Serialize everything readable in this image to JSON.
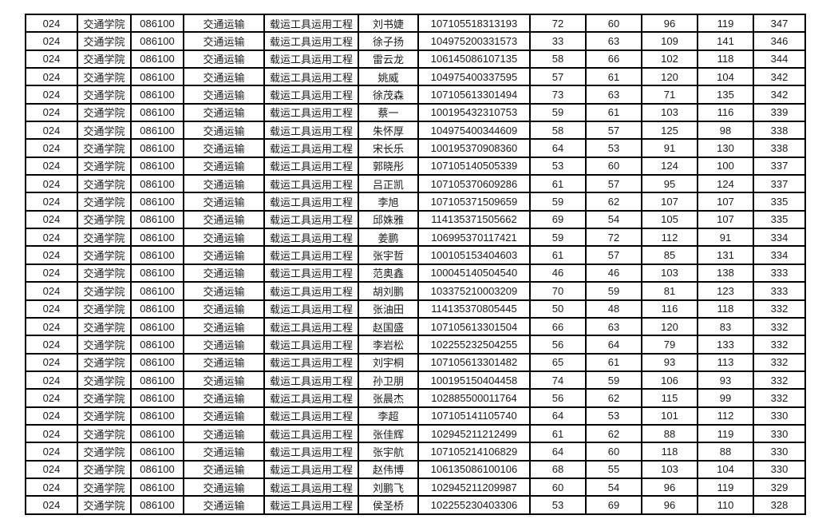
{
  "table": {
    "repeated": {
      "dept_code": "024",
      "college": "交通学院",
      "major_code": "086100",
      "major": "交通运输",
      "direction": "载运工具运用工程"
    },
    "rows": [
      [
        "024",
        "交通学院",
        "086100",
        "交通运输",
        "载运工具运用工程",
        "刘书婕",
        "107105518313193",
        "72",
        "60",
        "96",
        "119",
        "347"
      ],
      [
        "024",
        "交通学院",
        "086100",
        "交通运输",
        "载运工具运用工程",
        "徐子扬",
        "104975200331573",
        "33",
        "63",
        "109",
        "141",
        "346"
      ],
      [
        "024",
        "交通学院",
        "086100",
        "交通运输",
        "载运工具运用工程",
        "雷云龙",
        "106145086107135",
        "58",
        "66",
        "102",
        "118",
        "344"
      ],
      [
        "024",
        "交通学院",
        "086100",
        "交通运输",
        "载运工具运用工程",
        "姚威",
        "104975400337595",
        "57",
        "61",
        "120",
        "104",
        "342"
      ],
      [
        "024",
        "交通学院",
        "086100",
        "交通运输",
        "载运工具运用工程",
        "徐茂森",
        "107105613301494",
        "73",
        "63",
        "71",
        "135",
        "342"
      ],
      [
        "024",
        "交通学院",
        "086100",
        "交通运输",
        "载运工具运用工程",
        "蔡一",
        "100195432310753",
        "59",
        "61",
        "103",
        "116",
        "339"
      ],
      [
        "024",
        "交通学院",
        "086100",
        "交通运输",
        "载运工具运用工程",
        "朱怀厚",
        "104975400344609",
        "58",
        "57",
        "125",
        "98",
        "338"
      ],
      [
        "024",
        "交通学院",
        "086100",
        "交通运输",
        "载运工具运用工程",
        "宋长乐",
        "100195370908360",
        "64",
        "53",
        "91",
        "130",
        "338"
      ],
      [
        "024",
        "交通学院",
        "086100",
        "交通运输",
        "载运工具运用工程",
        "郭晓彤",
        "107105140505339",
        "53",
        "60",
        "124",
        "100",
        "337"
      ],
      [
        "024",
        "交通学院",
        "086100",
        "交通运输",
        "载运工具运用工程",
        "吕正凯",
        "107105370609286",
        "61",
        "57",
        "95",
        "124",
        "337"
      ],
      [
        "024",
        "交通学院",
        "086100",
        "交通运输",
        "载运工具运用工程",
        "李旭",
        "107105371509659",
        "59",
        "62",
        "107",
        "107",
        "335"
      ],
      [
        "024",
        "交通学院",
        "086100",
        "交通运输",
        "载运工具运用工程",
        "邱姝雅",
        "114135371505662",
        "69",
        "54",
        "105",
        "107",
        "335"
      ],
      [
        "024",
        "交通学院",
        "086100",
        "交通运输",
        "载运工具运用工程",
        "姜鹏",
        "106995370117421",
        "59",
        "72",
        "112",
        "91",
        "334"
      ],
      [
        "024",
        "交通学院",
        "086100",
        "交通运输",
        "载运工具运用工程",
        "张宇哲",
        "100105153404603",
        "61",
        "57",
        "85",
        "131",
        "334"
      ],
      [
        "024",
        "交通学院",
        "086100",
        "交通运输",
        "载运工具运用工程",
        "范奥鑫",
        "100045140504540",
        "46",
        "46",
        "103",
        "138",
        "333"
      ],
      [
        "024",
        "交通学院",
        "086100",
        "交通运输",
        "载运工具运用工程",
        "胡刘鹏",
        "103375210003209",
        "70",
        "59",
        "81",
        "123",
        "333"
      ],
      [
        "024",
        "交通学院",
        "086100",
        "交通运输",
        "载运工具运用工程",
        "张油田",
        "114135370805445",
        "50",
        "48",
        "116",
        "118",
        "332"
      ],
      [
        "024",
        "交通学院",
        "086100",
        "交通运输",
        "载运工具运用工程",
        "赵国盛",
        "107105613301504",
        "66",
        "63",
        "120",
        "83",
        "332"
      ],
      [
        "024",
        "交通学院",
        "086100",
        "交通运输",
        "载运工具运用工程",
        "李岩松",
        "102255232504255",
        "56",
        "64",
        "79",
        "133",
        "332"
      ],
      [
        "024",
        "交通学院",
        "086100",
        "交通运输",
        "载运工具运用工程",
        "刘宇桐",
        "107105613301482",
        "65",
        "61",
        "93",
        "113",
        "332"
      ],
      [
        "024",
        "交通学院",
        "086100",
        "交通运输",
        "载运工具运用工程",
        "孙卫朋",
        "100195150404458",
        "74",
        "59",
        "106",
        "93",
        "332"
      ],
      [
        "024",
        "交通学院",
        "086100",
        "交通运输",
        "载运工具运用工程",
        "张晨杰",
        "102885500011764",
        "56",
        "62",
        "115",
        "99",
        "332"
      ],
      [
        "024",
        "交通学院",
        "086100",
        "交通运输",
        "载运工具运用工程",
        "李超",
        "107105141105740",
        "64",
        "53",
        "101",
        "112",
        "330"
      ],
      [
        "024",
        "交通学院",
        "086100",
        "交通运输",
        "载运工具运用工程",
        "张佳辉",
        "102945211212499",
        "61",
        "62",
        "88",
        "119",
        "330"
      ],
      [
        "024",
        "交通学院",
        "086100",
        "交通运输",
        "载运工具运用工程",
        "张宇航",
        "107105214106829",
        "64",
        "60",
        "118",
        "88",
        "330"
      ],
      [
        "024",
        "交通学院",
        "086100",
        "交通运输",
        "载运工具运用工程",
        "赵伟博",
        "106135086100106",
        "68",
        "55",
        "103",
        "104",
        "330"
      ],
      [
        "024",
        "交通学院",
        "086100",
        "交通运输",
        "载运工具运用工程",
        "刘鹏飞",
        "102945211209987",
        "60",
        "54",
        "96",
        "119",
        "329"
      ],
      [
        "024",
        "交通学院",
        "086100",
        "交通运输",
        "载运工具运用工程",
        "侯圣桥",
        "102255230403306",
        "53",
        "69",
        "96",
        "110",
        "328"
      ]
    ],
    "border_color": "#000000",
    "text_color": "#1a1a1a",
    "background_color": "#ffffff"
  }
}
